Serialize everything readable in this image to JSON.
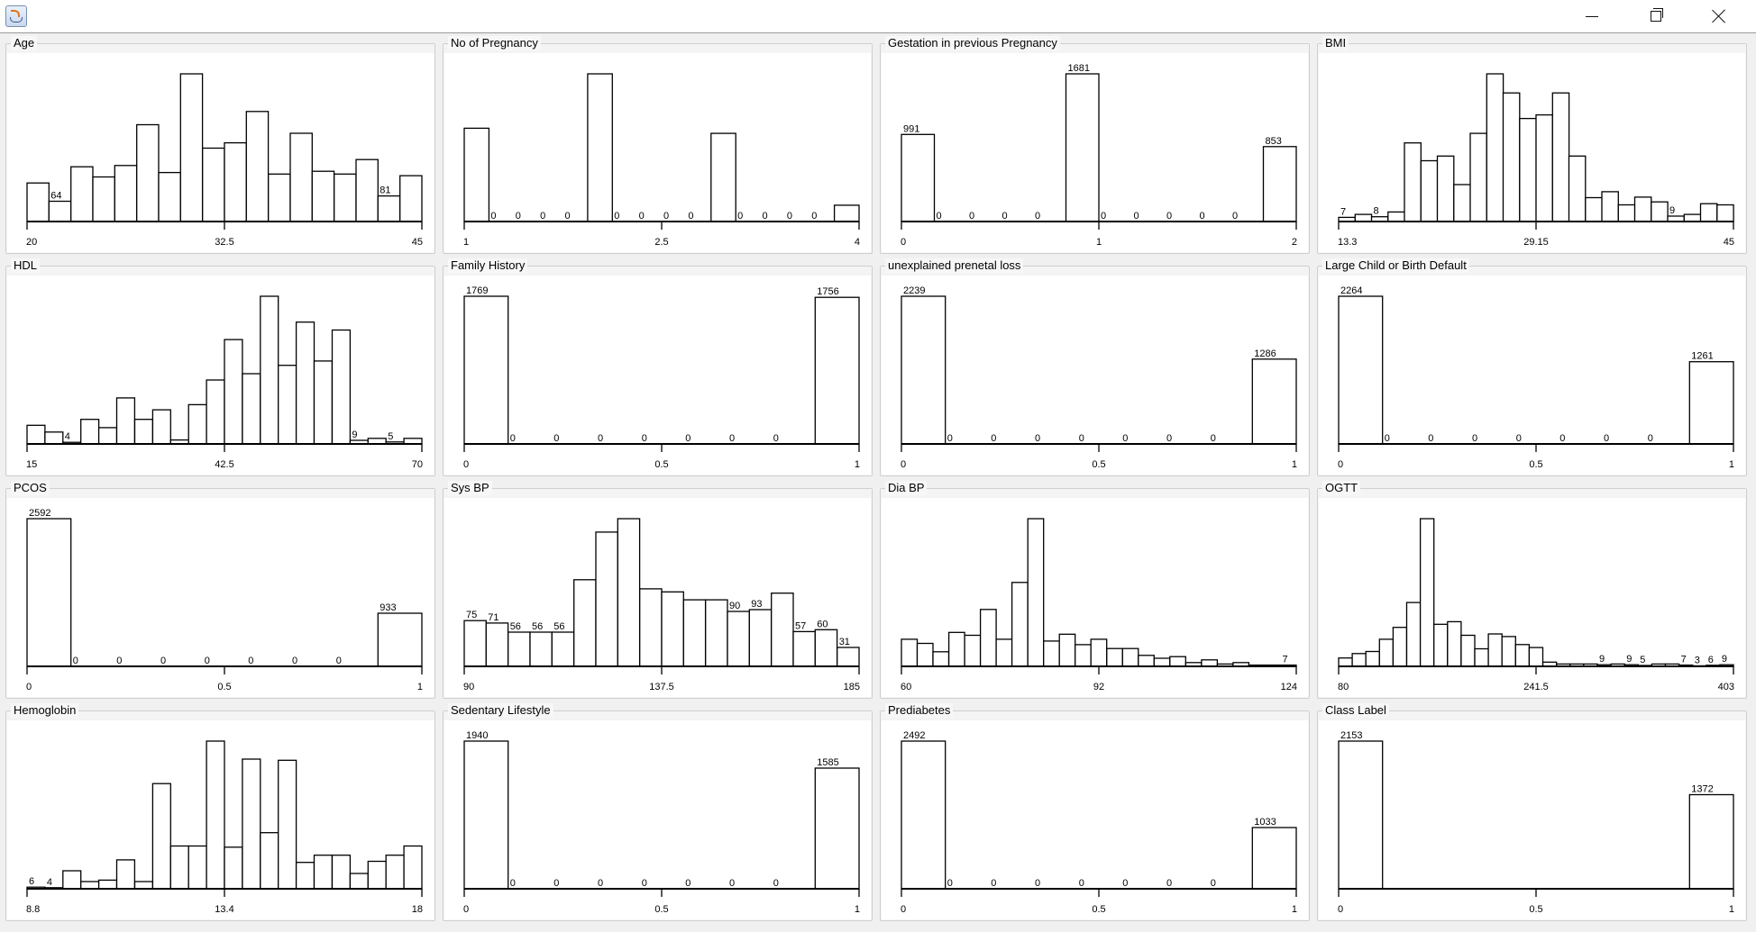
{
  "window": {
    "controls": {
      "minimize": "minimize-icon",
      "restore": "restore-icon",
      "close": "close-icon"
    },
    "app_icon": "java-cup-icon"
  },
  "colors": {
    "bar_fill": "#ffffff",
    "bar_stroke": "#000000",
    "axis": "#000000"
  },
  "chart_data": [
    {
      "type": "bar",
      "title": "Age",
      "x_ticks": [
        "20",
        "32.5",
        "45"
      ],
      "values": [
        122,
        64,
        173,
        141,
        177,
        306,
        155,
        467,
        232,
        249,
        348,
        150,
        279,
        159,
        150,
        196,
        81,
        145
      ],
      "labeled": [
        1,
        16
      ]
    },
    {
      "type": "bar",
      "title": "No of Pregnancy",
      "x_ticks": [
        "1",
        "2.5",
        "4"
      ],
      "values": [
        952,
        0,
        0,
        0,
        0,
        1507,
        0,
        0,
        0,
        0,
        900,
        0,
        0,
        0,
        0,
        166
      ],
      "labeled": [
        1,
        2,
        3,
        4,
        6,
        7,
        8,
        9,
        11,
        12,
        13,
        14
      ]
    },
    {
      "type": "bar",
      "title": "Gestation in previous Pregnancy",
      "x_ticks": [
        "0",
        "1",
        "2"
      ],
      "values": [
        991,
        0,
        0,
        0,
        0,
        1681,
        0,
        0,
        0,
        0,
        0,
        853
      ],
      "labeled": [
        0,
        1,
        2,
        3,
        4,
        5,
        6,
        7,
        8,
        9,
        10,
        11
      ]
    },
    {
      "type": "bar",
      "title": "BMI",
      "x_ticks": [
        "13.3",
        "29.15",
        "45"
      ],
      "values": [
        7,
        12,
        8,
        16,
        132,
        102,
        110,
        62,
        148,
        248,
        216,
        173,
        179,
        216,
        110,
        40,
        50,
        28,
        41,
        33,
        9,
        12,
        30,
        28
      ],
      "labeled": [
        0,
        2,
        20
      ]
    },
    {
      "type": "bar",
      "title": "HDL",
      "x_ticks": [
        "15",
        "42.5",
        "70"
      ],
      "values": [
        47,
        30,
        4,
        62,
        41,
        116,
        62,
        86,
        10,
        99,
        161,
        263,
        177,
        372,
        198,
        307,
        209,
        287,
        9,
        14,
        5,
        14
      ],
      "labeled": [
        2,
        18,
        20
      ]
    },
    {
      "type": "bar",
      "title": "Family History",
      "x_ticks": [
        "0",
        "0.5",
        "1"
      ],
      "values": [
        1769,
        0,
        0,
        0,
        0,
        0,
        0,
        0,
        1756
      ],
      "labeled": [
        0,
        1,
        2,
        3,
        4,
        5,
        6,
        7,
        8
      ]
    },
    {
      "type": "bar",
      "title": "unexplained prenetal loss",
      "x_ticks": [
        "0",
        "0.5",
        "1"
      ],
      "values": [
        2239,
        0,
        0,
        0,
        0,
        0,
        0,
        0,
        1286
      ],
      "labeled": [
        0,
        1,
        2,
        3,
        4,
        5,
        6,
        7,
        8
      ]
    },
    {
      "type": "bar",
      "title": "Large Child or Birth Default",
      "x_ticks": [
        "0",
        "0.5",
        "1"
      ],
      "values": [
        2264,
        0,
        0,
        0,
        0,
        0,
        0,
        0,
        1261
      ],
      "labeled": [
        0,
        1,
        2,
        3,
        4,
        5,
        6,
        7,
        8
      ]
    },
    {
      "type": "bar",
      "title": "PCOS",
      "x_ticks": [
        "0",
        "0.5",
        "1"
      ],
      "values": [
        2592,
        0,
        0,
        0,
        0,
        0,
        0,
        0,
        933
      ],
      "labeled": [
        0,
        1,
        2,
        3,
        4,
        5,
        6,
        7,
        8
      ]
    },
    {
      "type": "bar",
      "title": "Sys BP",
      "x_ticks": [
        "90",
        "137.5",
        "185"
      ],
      "values": [
        75,
        71,
        56,
        56,
        56,
        142,
        220,
        242,
        127,
        122,
        109,
        109,
        90,
        93,
        120,
        57,
        60,
        31
      ],
      "labeled": [
        0,
        1,
        2,
        3,
        4,
        12,
        13,
        15,
        16,
        17
      ]
    },
    {
      "type": "bar",
      "title": "Dia BP",
      "x_ticks": [
        "60",
        "92",
        "124"
      ],
      "values": [
        150,
        127,
        81,
        188,
        172,
        315,
        150,
        465,
        818,
        140,
        178,
        120,
        150,
        99,
        99,
        61,
        45,
        54,
        21,
        36,
        13,
        21,
        7,
        7,
        7
      ],
      "labeled": [
        24
      ]
    },
    {
      "type": "bar",
      "title": "OGTT",
      "x_ticks": [
        "80",
        "241.5",
        "403"
      ],
      "values": [
        47,
        72,
        84,
        153,
        220,
        360,
        833,
        237,
        252,
        175,
        99,
        183,
        168,
        123,
        106,
        24,
        13,
        13,
        13,
        9,
        13,
        9,
        5,
        13,
        13,
        7,
        3,
        6,
        9
      ],
      "labeled": [
        19,
        21,
        22,
        25,
        26,
        27,
        28
      ]
    },
    {
      "type": "bar",
      "title": "Hemoglobin",
      "x_ticks": [
        "8.8",
        "13.4",
        "18"
      ],
      "values": [
        6,
        4,
        65,
        26,
        31,
        104,
        26,
        379,
        154,
        154,
        532,
        150,
        467,
        202,
        463,
        95,
        121,
        121,
        55,
        99,
        121,
        154
      ],
      "labeled": [
        0,
        1
      ]
    },
    {
      "type": "bar",
      "title": "Sedentary Lifestyle",
      "x_ticks": [
        "0",
        "0.5",
        "1"
      ],
      "values": [
        1940,
        0,
        0,
        0,
        0,
        0,
        0,
        0,
        1585
      ],
      "labeled": [
        0,
        1,
        2,
        3,
        4,
        5,
        6,
        7,
        8
      ]
    },
    {
      "type": "bar",
      "title": "Prediabetes",
      "x_ticks": [
        "0",
        "0.5",
        "1"
      ],
      "values": [
        2492,
        0,
        0,
        0,
        0,
        0,
        0,
        0,
        1033
      ],
      "labeled": [
        0,
        1,
        2,
        3,
        4,
        5,
        6,
        7,
        8
      ]
    },
    {
      "type": "bar",
      "title": "Class Label",
      "x_ticks": [
        "0",
        "0.5",
        "1"
      ],
      "values": [
        2153,
        0,
        0,
        0,
        0,
        0,
        0,
        0,
        1372
      ],
      "labeled": [
        0,
        8
      ]
    }
  ]
}
